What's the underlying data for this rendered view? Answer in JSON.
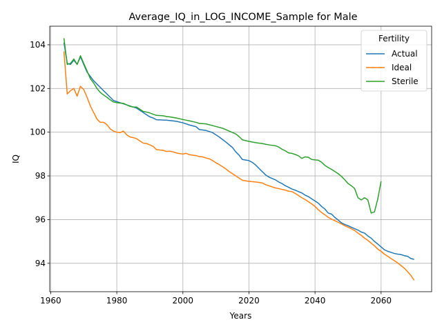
{
  "chart_data": {
    "type": "line",
    "title": "Average_IQ_in_LOG_INCOME_Sample for Male",
    "xlabel": "Years",
    "ylabel": "IQ",
    "xlim": [
      1959.7,
      2075.3
    ],
    "ylim": [
      92.7,
      104.85
    ],
    "xticks": [
      1960,
      1980,
      2000,
      2020,
      2040,
      2060
    ],
    "yticks": [
      94,
      96,
      98,
      100,
      102,
      104
    ],
    "grid": true,
    "legend": {
      "title": "Fertility",
      "placement": "top-right"
    },
    "series": [
      {
        "name": "Actual",
        "color": "#1f77b4",
        "points": [
          [
            1964,
            104.1
          ],
          [
            1965,
            103.15
          ],
          [
            1966,
            103.1
          ],
          [
            1967,
            103.3
          ],
          [
            1968,
            103.1
          ],
          [
            1969,
            103.45
          ],
          [
            1970,
            103.1
          ],
          [
            1971,
            102.75
          ],
          [
            1972,
            102.55
          ],
          [
            1973,
            102.35
          ],
          [
            1974,
            102.2
          ],
          [
            1975,
            102.05
          ],
          [
            1976,
            101.9
          ],
          [
            1977,
            101.75
          ],
          [
            1978,
            101.6
          ],
          [
            1979,
            101.45
          ],
          [
            1980,
            101.4
          ],
          [
            1981,
            101.35
          ],
          [
            1982,
            101.3
          ],
          [
            1983,
            101.25
          ],
          [
            1984,
            101.2
          ],
          [
            1985,
            101.15
          ],
          [
            1986,
            101.1
          ],
          [
            1987,
            101.0
          ],
          [
            1988,
            100.9
          ],
          [
            1989,
            100.8
          ],
          [
            1990,
            100.7
          ],
          [
            1991,
            100.65
          ],
          [
            1992,
            100.57
          ],
          [
            1995,
            100.55
          ],
          [
            1998,
            100.5
          ],
          [
            2000,
            100.43
          ],
          [
            2002,
            100.33
          ],
          [
            2004,
            100.25
          ],
          [
            2005,
            100.12
          ],
          [
            2007,
            100.08
          ],
          [
            2009,
            99.98
          ],
          [
            2011,
            99.78
          ],
          [
            2013,
            99.55
          ],
          [
            2015,
            99.3
          ],
          [
            2016,
            99.1
          ],
          [
            2017,
            98.95
          ],
          [
            2018,
            98.75
          ],
          [
            2020,
            98.7
          ],
          [
            2021,
            98.62
          ],
          [
            2022,
            98.5
          ],
          [
            2023,
            98.35
          ],
          [
            2024,
            98.2
          ],
          [
            2025,
            98.05
          ],
          [
            2026,
            97.95
          ],
          [
            2027,
            97.88
          ],
          [
            2028,
            97.82
          ],
          [
            2029,
            97.72
          ],
          [
            2030,
            97.65
          ],
          [
            2031,
            97.55
          ],
          [
            2032,
            97.48
          ],
          [
            2033,
            97.4
          ],
          [
            2034,
            97.35
          ],
          [
            2035,
            97.28
          ],
          [
            2036,
            97.22
          ],
          [
            2037,
            97.12
          ],
          [
            2038,
            97.05
          ],
          [
            2039,
            96.95
          ],
          [
            2040,
            96.85
          ],
          [
            2041,
            96.75
          ],
          [
            2042,
            96.6
          ],
          [
            2043,
            96.48
          ],
          [
            2044,
            96.3
          ],
          [
            2045,
            96.25
          ],
          [
            2046,
            96.1
          ],
          [
            2047,
            95.98
          ],
          [
            2048,
            95.85
          ],
          [
            2049,
            95.78
          ],
          [
            2050,
            95.72
          ],
          [
            2051,
            95.65
          ],
          [
            2052,
            95.58
          ],
          [
            2053,
            95.52
          ],
          [
            2054,
            95.43
          ],
          [
            2055,
            95.38
          ],
          [
            2056,
            95.25
          ],
          [
            2057,
            95.15
          ],
          [
            2058,
            95.0
          ],
          [
            2059,
            94.88
          ],
          [
            2060,
            94.75
          ],
          [
            2061,
            94.62
          ],
          [
            2062,
            94.55
          ],
          [
            2063,
            94.5
          ],
          [
            2064,
            94.45
          ],
          [
            2065,
            94.42
          ],
          [
            2066,
            94.4
          ],
          [
            2067,
            94.35
          ],
          [
            2068,
            94.32
          ],
          [
            2069,
            94.22
          ],
          [
            2070,
            94.18
          ]
        ]
      },
      {
        "name": "Ideal",
        "color": "#ff7f0e",
        "points": [
          [
            1964,
            103.7
          ],
          [
            1965,
            101.75
          ],
          [
            1966,
            101.9
          ],
          [
            1967,
            102.0
          ],
          [
            1968,
            101.65
          ],
          [
            1969,
            102.1
          ],
          [
            1970,
            101.95
          ],
          [
            1971,
            101.6
          ],
          [
            1972,
            101.2
          ],
          [
            1973,
            100.9
          ],
          [
            1974,
            100.6
          ],
          [
            1975,
            100.45
          ],
          [
            1976,
            100.45
          ],
          [
            1977,
            100.35
          ],
          [
            1978,
            100.15
          ],
          [
            1979,
            100.05
          ],
          [
            1980,
            100.0
          ],
          [
            1981,
            99.98
          ],
          [
            1982,
            100.05
          ],
          [
            1983,
            99.88
          ],
          [
            1984,
            99.78
          ],
          [
            1985,
            99.75
          ],
          [
            1986,
            99.7
          ],
          [
            1987,
            99.6
          ],
          [
            1988,
            99.5
          ],
          [
            1989,
            99.48
          ],
          [
            1990,
            99.42
          ],
          [
            1991,
            99.35
          ],
          [
            1992,
            99.2
          ],
          [
            1994,
            99.17
          ],
          [
            1995,
            99.12
          ],
          [
            1996,
            99.13
          ],
          [
            1997,
            99.1
          ],
          [
            1998,
            99.05
          ],
          [
            1999,
            99.02
          ],
          [
            2000,
            99.0
          ],
          [
            2001,
            99.03
          ],
          [
            2002,
            98.97
          ],
          [
            2004,
            98.93
          ],
          [
            2005,
            98.88
          ],
          [
            2006,
            98.87
          ],
          [
            2007,
            98.82
          ],
          [
            2008,
            98.78
          ],
          [
            2009,
            98.7
          ],
          [
            2010,
            98.6
          ],
          [
            2011,
            98.52
          ],
          [
            2012,
            98.42
          ],
          [
            2013,
            98.32
          ],
          [
            2014,
            98.2
          ],
          [
            2015,
            98.1
          ],
          [
            2016,
            98.0
          ],
          [
            2017,
            97.9
          ],
          [
            2018,
            97.8
          ],
          [
            2020,
            97.75
          ],
          [
            2022,
            97.72
          ],
          [
            2024,
            97.68
          ],
          [
            2025,
            97.6
          ],
          [
            2026,
            97.55
          ],
          [
            2027,
            97.5
          ],
          [
            2028,
            97.45
          ],
          [
            2029,
            97.42
          ],
          [
            2030,
            97.38
          ],
          [
            2031,
            97.35
          ],
          [
            2032,
            97.3
          ],
          [
            2033,
            97.28
          ],
          [
            2034,
            97.2
          ],
          [
            2035,
            97.1
          ],
          [
            2036,
            97.0
          ],
          [
            2037,
            96.92
          ],
          [
            2038,
            96.82
          ],
          [
            2039,
            96.72
          ],
          [
            2040,
            96.6
          ],
          [
            2041,
            96.45
          ],
          [
            2042,
            96.32
          ],
          [
            2043,
            96.22
          ],
          [
            2044,
            96.1
          ],
          [
            2045,
            96.02
          ],
          [
            2046,
            95.95
          ],
          [
            2047,
            95.88
          ],
          [
            2048,
            95.8
          ],
          [
            2049,
            95.72
          ],
          [
            2050,
            95.65
          ],
          [
            2051,
            95.58
          ],
          [
            2052,
            95.5
          ],
          [
            2053,
            95.38
          ],
          [
            2054,
            95.28
          ],
          [
            2055,
            95.15
          ],
          [
            2056,
            95.05
          ],
          [
            2057,
            94.92
          ],
          [
            2058,
            94.8
          ],
          [
            2059,
            94.65
          ],
          [
            2060,
            94.55
          ],
          [
            2061,
            94.42
          ],
          [
            2062,
            94.32
          ],
          [
            2063,
            94.22
          ],
          [
            2064,
            94.12
          ],
          [
            2065,
            94.02
          ],
          [
            2066,
            93.9
          ],
          [
            2067,
            93.78
          ],
          [
            2068,
            93.62
          ],
          [
            2069,
            93.45
          ],
          [
            2070,
            93.22
          ]
        ]
      },
      {
        "name": "Sterile",
        "color": "#2ca02c",
        "points": [
          [
            1964,
            104.3
          ],
          [
            1965,
            103.1
          ],
          [
            1966,
            103.15
          ],
          [
            1967,
            103.35
          ],
          [
            1968,
            103.1
          ],
          [
            1969,
            103.5
          ],
          [
            1970,
            103.15
          ],
          [
            1971,
            102.8
          ],
          [
            1972,
            102.45
          ],
          [
            1973,
            102.25
          ],
          [
            1974,
            102.0
          ],
          [
            1975,
            101.82
          ],
          [
            1976,
            101.7
          ],
          [
            1977,
            101.6
          ],
          [
            1978,
            101.48
          ],
          [
            1979,
            101.38
          ],
          [
            1980,
            101.35
          ],
          [
            1981,
            101.33
          ],
          [
            1982,
            101.32
          ],
          [
            1983,
            101.25
          ],
          [
            1984,
            101.18
          ],
          [
            1985,
            101.15
          ],
          [
            1986,
            101.15
          ],
          [
            1987,
            101.05
          ],
          [
            1988,
            100.95
          ],
          [
            1989,
            100.92
          ],
          [
            1990,
            100.88
          ],
          [
            1991,
            100.82
          ],
          [
            1992,
            100.77
          ],
          [
            1994,
            100.75
          ],
          [
            1995,
            100.72
          ],
          [
            1996,
            100.7
          ],
          [
            1998,
            100.65
          ],
          [
            2000,
            100.58
          ],
          [
            2002,
            100.52
          ],
          [
            2004,
            100.45
          ],
          [
            2005,
            100.4
          ],
          [
            2007,
            100.38
          ],
          [
            2009,
            100.3
          ],
          [
            2011,
            100.22
          ],
          [
            2012,
            100.18
          ],
          [
            2014,
            100.05
          ],
          [
            2016,
            99.92
          ],
          [
            2017,
            99.8
          ],
          [
            2018,
            99.65
          ],
          [
            2020,
            99.58
          ],
          [
            2022,
            99.52
          ],
          [
            2024,
            99.48
          ],
          [
            2026,
            99.42
          ],
          [
            2028,
            99.38
          ],
          [
            2029,
            99.32
          ],
          [
            2030,
            99.22
          ],
          [
            2031,
            99.15
          ],
          [
            2032,
            99.05
          ],
          [
            2033,
            99.03
          ],
          [
            2034,
            98.98
          ],
          [
            2035,
            98.92
          ],
          [
            2036,
            98.8
          ],
          [
            2037,
            98.87
          ],
          [
            2038,
            98.85
          ],
          [
            2039,
            98.75
          ],
          [
            2040,
            98.73
          ],
          [
            2041,
            98.72
          ],
          [
            2042,
            98.62
          ],
          [
            2043,
            98.48
          ],
          [
            2044,
            98.38
          ],
          [
            2045,
            98.3
          ],
          [
            2046,
            98.2
          ],
          [
            2047,
            98.1
          ],
          [
            2048,
            97.98
          ],
          [
            2049,
            97.82
          ],
          [
            2050,
            97.65
          ],
          [
            2051,
            97.55
          ],
          [
            2052,
            97.42
          ],
          [
            2053,
            97.0
          ],
          [
            2054,
            96.9
          ],
          [
            2055,
            97.0
          ],
          [
            2056,
            96.9
          ],
          [
            2057,
            96.3
          ],
          [
            2058,
            96.35
          ],
          [
            2059,
            96.95
          ],
          [
            2060,
            97.75
          ]
        ]
      }
    ]
  }
}
